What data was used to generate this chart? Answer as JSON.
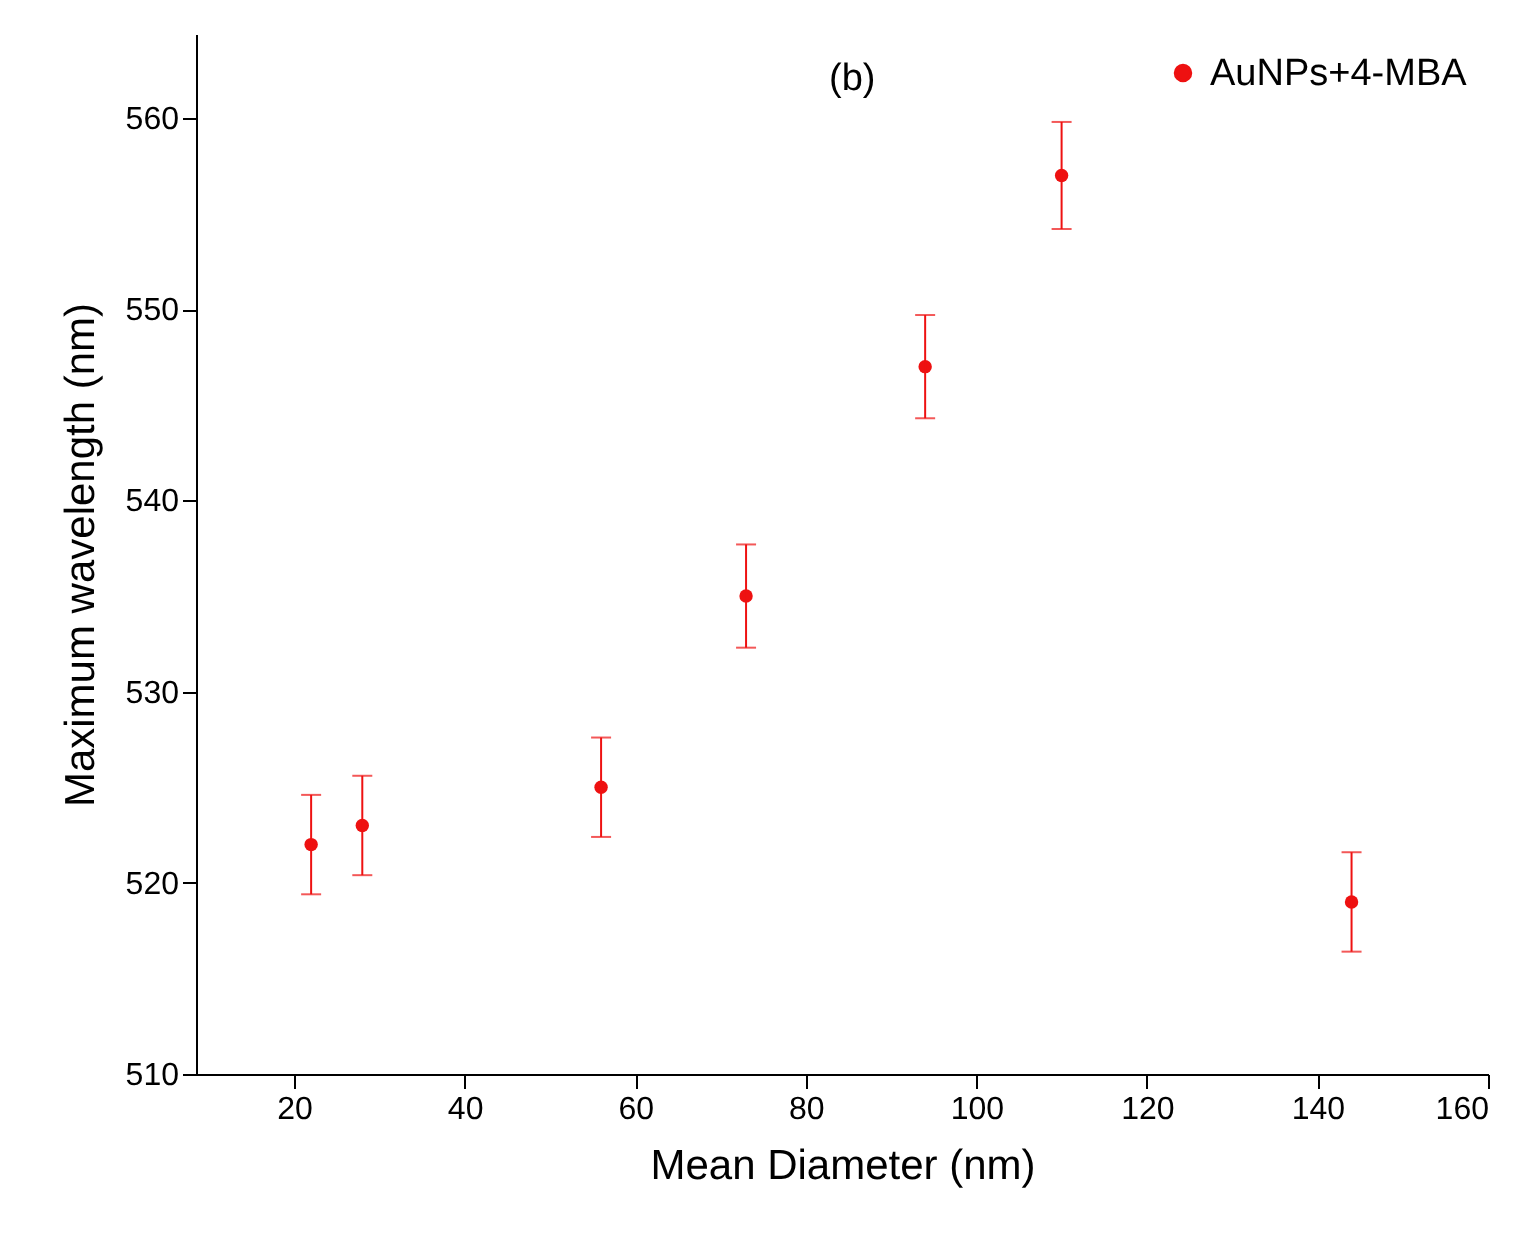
{
  "chart_data": {
    "type": "scatter",
    "xlabel": "Mean Diameter (nm)",
    "ylabel": "Maximum wavelength (nm)",
    "x": [
      22,
      28,
      56,
      73,
      94,
      110,
      144
    ],
    "series": [
      {
        "name": "AuNPs+4-MBA",
        "color": "#ee1111",
        "values": [
          522,
          523,
          525,
          535,
          547,
          557,
          519
        ],
        "errors": [
          2.6,
          2.6,
          2.6,
          2.7,
          2.7,
          2.8,
          2.6
        ]
      }
    ],
    "xlim": [
      8.5,
      160
    ],
    "xticks": [
      20,
      40,
      60,
      80,
      100,
      120,
      140,
      160
    ],
    "ylim": [
      510,
      564.4
    ],
    "yticks": [
      510,
      520,
      530,
      540,
      550,
      560
    ],
    "annotations": [
      "(b)"
    ],
    "legend": "top right",
    "grid": false,
    "marker": "circle"
  }
}
